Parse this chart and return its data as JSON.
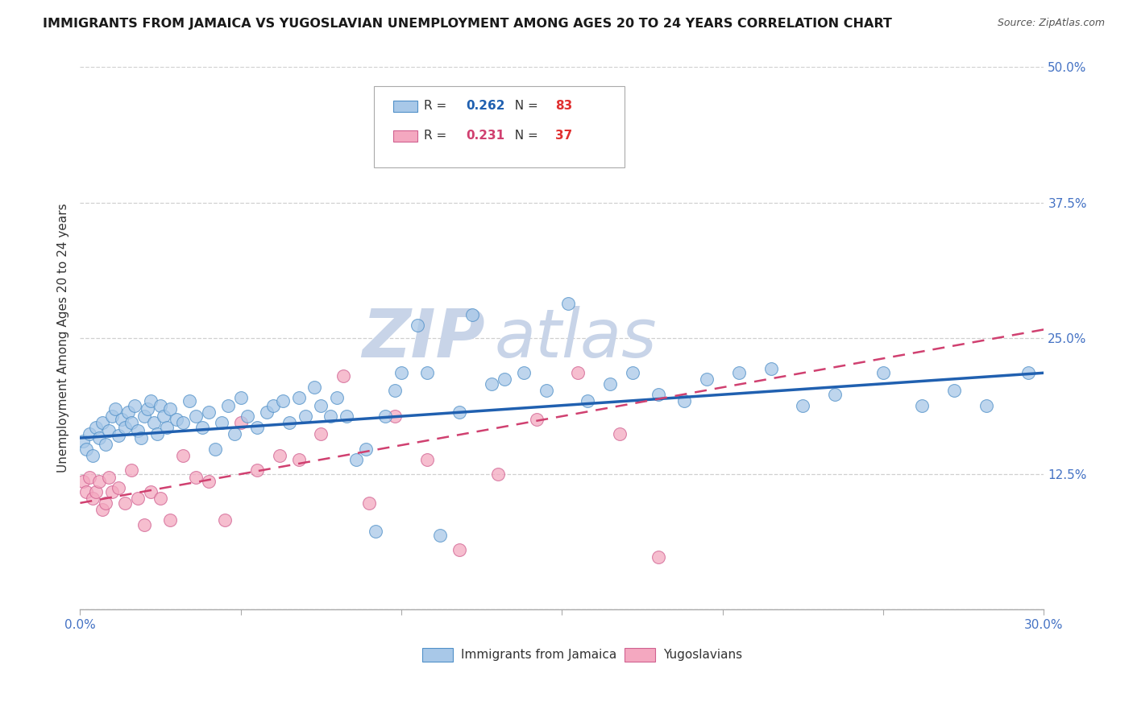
{
  "title": "IMMIGRANTS FROM JAMAICA VS YUGOSLAVIAN UNEMPLOYMENT AMONG AGES 20 TO 24 YEARS CORRELATION CHART",
  "source": "Source: ZipAtlas.com",
  "ylabel": "Unemployment Among Ages 20 to 24 years",
  "x_min": 0.0,
  "x_max": 0.3,
  "y_min": 0.0,
  "y_max": 0.5,
  "x_ticks": [
    0.0,
    0.05,
    0.1,
    0.15,
    0.2,
    0.25,
    0.3
  ],
  "x_tick_labels": [
    "0.0%",
    "",
    "",
    "",
    "",
    "",
    "30.0%"
  ],
  "y_ticks": [
    0.0,
    0.125,
    0.25,
    0.375,
    0.5
  ],
  "y_tick_labels_right": [
    "",
    "12.5%",
    "25.0%",
    "37.5%",
    "50.0%"
  ],
  "watermark_zip": "ZIP",
  "watermark_atlas": "atlas",
  "legend_entries": [
    {
      "label": "Immigrants from Jamaica",
      "R": "0.262",
      "N": "83",
      "scatter_color": "#a8c8e8",
      "line_color": "#3a7abf"
    },
    {
      "label": "Yugoslavians",
      "R": "0.231",
      "N": "37",
      "scatter_color": "#f4a8c0",
      "line_color": "#d45080"
    }
  ],
  "blue_scatter_x": [
    0.001,
    0.002,
    0.003,
    0.004,
    0.005,
    0.006,
    0.007,
    0.008,
    0.009,
    0.01,
    0.011,
    0.012,
    0.013,
    0.014,
    0.015,
    0.016,
    0.017,
    0.018,
    0.019,
    0.02,
    0.021,
    0.022,
    0.023,
    0.024,
    0.025,
    0.026,
    0.027,
    0.028,
    0.03,
    0.032,
    0.034,
    0.036,
    0.038,
    0.04,
    0.042,
    0.044,
    0.046,
    0.048,
    0.05,
    0.052,
    0.055,
    0.058,
    0.06,
    0.063,
    0.065,
    0.068,
    0.07,
    0.073,
    0.075,
    0.078,
    0.08,
    0.083,
    0.086,
    0.089,
    0.092,
    0.095,
    0.098,
    0.1,
    0.105,
    0.108,
    0.112,
    0.118,
    0.122,
    0.128,
    0.132,
    0.138,
    0.145,
    0.152,
    0.158,
    0.165,
    0.172,
    0.18,
    0.188,
    0.195,
    0.205,
    0.215,
    0.225,
    0.235,
    0.25,
    0.262,
    0.272,
    0.282,
    0.295
  ],
  "blue_scatter_y": [
    0.155,
    0.148,
    0.162,
    0.142,
    0.168,
    0.158,
    0.172,
    0.152,
    0.165,
    0.178,
    0.185,
    0.16,
    0.175,
    0.168,
    0.182,
    0.172,
    0.188,
    0.165,
    0.158,
    0.178,
    0.185,
    0.192,
    0.172,
    0.162,
    0.188,
    0.178,
    0.168,
    0.185,
    0.175,
    0.172,
    0.192,
    0.178,
    0.168,
    0.182,
    0.148,
    0.172,
    0.188,
    0.162,
    0.195,
    0.178,
    0.168,
    0.182,
    0.188,
    0.192,
    0.172,
    0.195,
    0.178,
    0.205,
    0.188,
    0.178,
    0.195,
    0.178,
    0.138,
    0.148,
    0.072,
    0.178,
    0.202,
    0.218,
    0.262,
    0.218,
    0.068,
    0.182,
    0.272,
    0.208,
    0.212,
    0.218,
    0.202,
    0.282,
    0.192,
    0.208,
    0.218,
    0.198,
    0.192,
    0.212,
    0.218,
    0.222,
    0.188,
    0.198,
    0.218,
    0.188,
    0.202,
    0.188,
    0.218
  ],
  "pink_scatter_x": [
    0.001,
    0.002,
    0.003,
    0.004,
    0.005,
    0.006,
    0.007,
    0.008,
    0.009,
    0.01,
    0.012,
    0.014,
    0.016,
    0.018,
    0.02,
    0.022,
    0.025,
    0.028,
    0.032,
    0.036,
    0.04,
    0.045,
    0.05,
    0.055,
    0.062,
    0.068,
    0.075,
    0.082,
    0.09,
    0.098,
    0.108,
    0.118,
    0.13,
    0.142,
    0.155,
    0.168,
    0.18
  ],
  "pink_scatter_y": [
    0.118,
    0.108,
    0.122,
    0.102,
    0.108,
    0.118,
    0.092,
    0.098,
    0.122,
    0.108,
    0.112,
    0.098,
    0.128,
    0.102,
    0.078,
    0.108,
    0.102,
    0.082,
    0.142,
    0.122,
    0.118,
    0.082,
    0.172,
    0.128,
    0.142,
    0.138,
    0.162,
    0.215,
    0.098,
    0.178,
    0.138,
    0.055,
    0.125,
    0.175,
    0.218,
    0.162,
    0.048
  ],
  "blue_line_x0": 0.0,
  "blue_line_y0": 0.158,
  "blue_line_x1": 0.3,
  "blue_line_y1": 0.218,
  "pink_line_x0": 0.0,
  "pink_line_y0": 0.098,
  "pink_line_x1": 0.3,
  "pink_line_y1": 0.258,
  "blue_line_color": "#2060b0",
  "pink_line_color": "#d04070",
  "scatter_blue_face": "#a8c8e8",
  "scatter_blue_edge": "#5090c8",
  "scatter_pink_face": "#f4a8c0",
  "scatter_pink_edge": "#d06090",
  "grid_color": "#d0d0d0",
  "tick_color": "#4472c4",
  "background_color": "#ffffff",
  "title_fontsize": 11.5,
  "source_fontsize": 9,
  "ylabel_fontsize": 11,
  "tick_fontsize": 11,
  "legend_fontsize": 11,
  "watermark_color": "#c8d4e8",
  "watermark_fontsize_zip": 60,
  "watermark_fontsize_atlas": 60
}
